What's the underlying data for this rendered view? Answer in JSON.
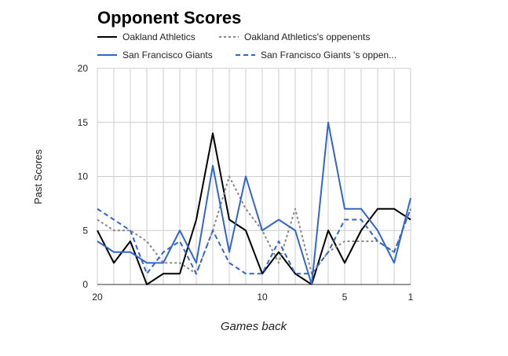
{
  "chart_data": {
    "type": "line",
    "title": "Opponent Scores",
    "xlabel": "Games back",
    "ylabel": "Past Scores",
    "x": [
      20,
      19,
      18,
      17,
      16,
      15,
      14,
      13,
      12,
      11,
      10,
      9,
      8,
      7,
      6,
      5,
      4,
      3,
      2,
      1
    ],
    "xlim": [
      20,
      1
    ],
    "ylim": [
      0,
      20
    ],
    "x_ticks": [
      20,
      10,
      5,
      1
    ],
    "y_ticks": [
      0,
      5,
      10,
      15,
      20
    ],
    "grid": true,
    "legend_position": "top",
    "series": [
      {
        "name": "Oakland Athletics",
        "color": "#000000",
        "dash": "solid",
        "values": [
          5,
          2,
          4,
          0,
          1,
          1,
          6,
          14,
          6,
          5,
          1,
          3,
          1,
          0,
          5,
          2,
          5,
          7,
          7,
          6
        ]
      },
      {
        "name": "Oakland Athletics's oppenents",
        "color": "#888888",
        "dash": "dotted",
        "values": [
          6,
          5,
          5,
          4,
          2,
          2,
          1,
          5,
          10,
          7,
          5,
          2,
          7,
          1,
          3,
          4,
          4,
          4,
          3,
          7
        ]
      },
      {
        "name": "San Francisco Giants",
        "color": "#3366cc",
        "dash": "solid",
        "values": [
          4,
          3,
          3,
          2,
          2,
          5,
          2,
          11,
          3,
          10,
          5,
          6,
          5,
          0,
          15,
          7,
          7,
          5,
          2,
          8
        ]
      },
      {
        "name": "San Francisco Giants 's oppen...",
        "color": "#3366cc",
        "dash": "dashed",
        "values": [
          7,
          6,
          5,
          1,
          3,
          4,
          1,
          5,
          2,
          1,
          1,
          4,
          1,
          1,
          3,
          6,
          6,
          4,
          3,
          7
        ]
      }
    ]
  }
}
